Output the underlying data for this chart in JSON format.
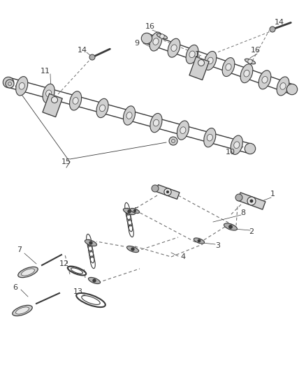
{
  "bg_color": "#ffffff",
  "line_color": "#3a3a3a",
  "gray1": "#b0b0b0",
  "gray2": "#d0d0d0",
  "gray3": "#e8e8e8",
  "dash_color": "#707070",
  "fig_width": 4.38,
  "fig_height": 5.33,
  "dpi": 100
}
